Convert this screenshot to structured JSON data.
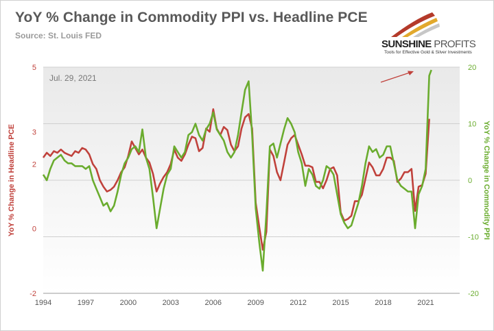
{
  "header": {
    "title": "YoY % Change in Commodity PPI vs. Headline PCE",
    "source": "Source: St. Louis FED"
  },
  "logo": {
    "name_bold": "SUNSHINE",
    "name_light": "PROFITS",
    "tagline": "Tools for Effective Gold & Silver Investments"
  },
  "chart_data": {
    "type": "line",
    "annotation": "Jul. 29, 2021",
    "ylabel_left": "YoY % Change in Headline PCE",
    "ylabel_right": "YoY % Change in Commodity PPI",
    "x_ticks": [
      "1994",
      "1997",
      "2000",
      "2003",
      "2006",
      "2009",
      "2012",
      "2015",
      "2018",
      "2021"
    ],
    "y_left_ticks": [
      "5",
      "3",
      "2",
      "0",
      "-2"
    ],
    "y_right_ticks": [
      "20",
      "10",
      "0",
      "-10",
      "-20"
    ],
    "ylim_left": [
      -2,
      5
    ],
    "ylim_right": [
      -20,
      20
    ],
    "xlim": [
      1994,
      2023.4
    ],
    "colors": {
      "pce": "#c0413b",
      "ppi": "#6aac2e",
      "arrow": "#c0413b"
    },
    "series": [
      {
        "axis": "left",
        "x": [
          1994.0,
          1994.25,
          1994.5,
          1994.75,
          1995.0,
          1995.25,
          1995.5,
          1995.75,
          1996.0,
          1996.25,
          1996.5,
          1996.75,
          1997.0,
          1997.25,
          1997.5,
          1997.75,
          1998.0,
          1998.25,
          1998.5,
          1998.75,
          1999.0,
          1999.25,
          1999.5,
          1999.75,
          2000.0,
          2000.25,
          2000.5,
          2000.75,
          2001.0,
          2001.25,
          2001.5,
          2001.75,
          2002.0,
          2002.25,
          2002.5,
          2002.75,
          2003.0,
          2003.25,
          2003.5,
          2003.75,
          2004.0,
          2004.25,
          2004.5,
          2004.75,
          2005.0,
          2005.25,
          2005.5,
          2005.75,
          2006.0,
          2006.25,
          2006.5,
          2006.75,
          2007.0,
          2007.25,
          2007.5,
          2007.75,
          2008.0,
          2008.25,
          2008.5,
          2008.75,
          2009.0,
          2009.25,
          2009.5,
          2009.75,
          2010.0,
          2010.25,
          2010.5,
          2010.75,
          2011.0,
          2011.25,
          2011.5,
          2011.75,
          2012.0,
          2012.25,
          2012.5,
          2012.75,
          2013.0,
          2013.25,
          2013.5,
          2013.75,
          2014.0,
          2014.25,
          2014.5,
          2014.75,
          2015.0,
          2015.25,
          2015.5,
          2015.75,
          2016.0,
          2016.25,
          2016.5,
          2016.75,
          2017.0,
          2017.25,
          2017.5,
          2017.75,
          2018.0,
          2018.25,
          2018.5,
          2018.75,
          2019.0,
          2019.25,
          2019.5,
          2019.75,
          2020.0,
          2020.25,
          2020.5,
          2020.75,
          2021.0,
          2021.25
        ],
        "y": [
          2.2,
          2.35,
          2.25,
          2.4,
          2.35,
          2.45,
          2.35,
          2.3,
          2.25,
          2.4,
          2.35,
          2.5,
          2.45,
          2.3,
          2.0,
          1.85,
          1.5,
          1.3,
          1.15,
          1.2,
          1.3,
          1.5,
          1.75,
          1.9,
          2.25,
          2.7,
          2.5,
          2.3,
          2.45,
          2.2,
          2.05,
          1.7,
          1.15,
          1.4,
          1.6,
          1.75,
          2.0,
          2.45,
          2.2,
          2.1,
          2.3,
          2.6,
          2.85,
          2.8,
          2.4,
          2.5,
          3.1,
          3.0,
          3.7,
          3.1,
          2.9,
          3.15,
          3.05,
          2.6,
          2.4,
          2.55,
          3.1,
          3.45,
          3.55,
          3.1,
          0.8,
          0.05,
          -0.65,
          -0.1,
          2.45,
          2.25,
          1.75,
          1.5,
          2.05,
          2.6,
          2.8,
          2.9,
          2.6,
          2.3,
          1.95,
          1.95,
          1.9,
          1.45,
          1.45,
          1.25,
          1.5,
          1.85,
          1.9,
          1.65,
          0.5,
          0.25,
          0.3,
          0.4,
          0.85,
          0.85,
          1.05,
          1.55,
          2.05,
          1.9,
          1.65,
          1.65,
          1.85,
          2.2,
          2.2,
          2.1,
          1.45,
          1.55,
          1.75,
          1.75,
          1.85,
          0.55,
          1.3,
          1.35,
          1.7,
          3.4
        ]
      },
      {
        "axis": "right",
        "x": [
          1994.0,
          1994.25,
          1994.5,
          1994.75,
          1995.0,
          1995.25,
          1995.5,
          1995.75,
          1996.0,
          1996.25,
          1996.5,
          1996.75,
          1997.0,
          1997.25,
          1997.5,
          1997.75,
          1998.0,
          1998.25,
          1998.5,
          1998.75,
          1999.0,
          1999.25,
          1999.5,
          1999.75,
          2000.0,
          2000.25,
          2000.5,
          2000.75,
          2001.0,
          2001.25,
          2001.5,
          2001.75,
          2002.0,
          2002.25,
          2002.5,
          2002.75,
          2003.0,
          2003.25,
          2003.5,
          2003.75,
          2004.0,
          2004.25,
          2004.5,
          2004.75,
          2005.0,
          2005.25,
          2005.5,
          2005.75,
          2006.0,
          2006.25,
          2006.5,
          2006.75,
          2007.0,
          2007.25,
          2007.5,
          2007.75,
          2008.0,
          2008.25,
          2008.5,
          2008.75,
          2009.0,
          2009.25,
          2009.5,
          2009.75,
          2010.0,
          2010.25,
          2010.5,
          2010.75,
          2011.0,
          2011.25,
          2011.5,
          2011.75,
          2012.0,
          2012.25,
          2012.5,
          2012.75,
          2013.0,
          2013.25,
          2013.5,
          2013.75,
          2014.0,
          2014.25,
          2014.5,
          2014.75,
          2015.0,
          2015.25,
          2015.5,
          2015.75,
          2016.0,
          2016.25,
          2016.5,
          2016.75,
          2017.0,
          2017.25,
          2017.5,
          2017.75,
          2018.0,
          2018.25,
          2018.5,
          2018.75,
          2019.0,
          2019.25,
          2019.5,
          2019.75,
          2020.0,
          2020.25,
          2020.5,
          2020.75,
          2021.0,
          2021.25,
          2021.4
        ],
        "y": [
          1.0,
          0.0,
          2.0,
          3.5,
          4.0,
          4.5,
          3.5,
          3.0,
          3.0,
          2.5,
          2.5,
          2.5,
          2.0,
          2.5,
          0.0,
          -1.5,
          -3.0,
          -4.5,
          -4.0,
          -5.5,
          -4.5,
          -2.0,
          1.0,
          3.0,
          4.0,
          5.5,
          6.0,
          5.0,
          9.0,
          4.0,
          2.0,
          -3.0,
          -8.5,
          -5.0,
          -1.5,
          1.0,
          2.0,
          6.0,
          5.0,
          4.0,
          5.0,
          8.0,
          8.5,
          10.0,
          8.0,
          7.0,
          9.0,
          10.0,
          12.0,
          9.0,
          8.0,
          7.0,
          5.0,
          4.0,
          5.0,
          8.0,
          12.0,
          16.0,
          17.5,
          8.0,
          -5.0,
          -11.0,
          -16.0,
          -6.0,
          6.0,
          6.5,
          4.0,
          6.5,
          9.0,
          11.0,
          10.0,
          8.5,
          5.0,
          3.0,
          -1.0,
          2.0,
          1.0,
          -1.0,
          -1.5,
          0.0,
          2.5,
          2.0,
          1.0,
          -2.5,
          -6.0,
          -7.5,
          -8.5,
          -8.0,
          -6.0,
          -4.0,
          -1.0,
          3.0,
          6.0,
          5.0,
          5.5,
          4.0,
          4.5,
          6.0,
          6.0,
          3.0,
          0.0,
          -1.0,
          -1.5,
          -2.0,
          -2.0,
          -8.5,
          -2.5,
          -1.0,
          2.0,
          18.5,
          19.5
        ]
      }
    ]
  }
}
